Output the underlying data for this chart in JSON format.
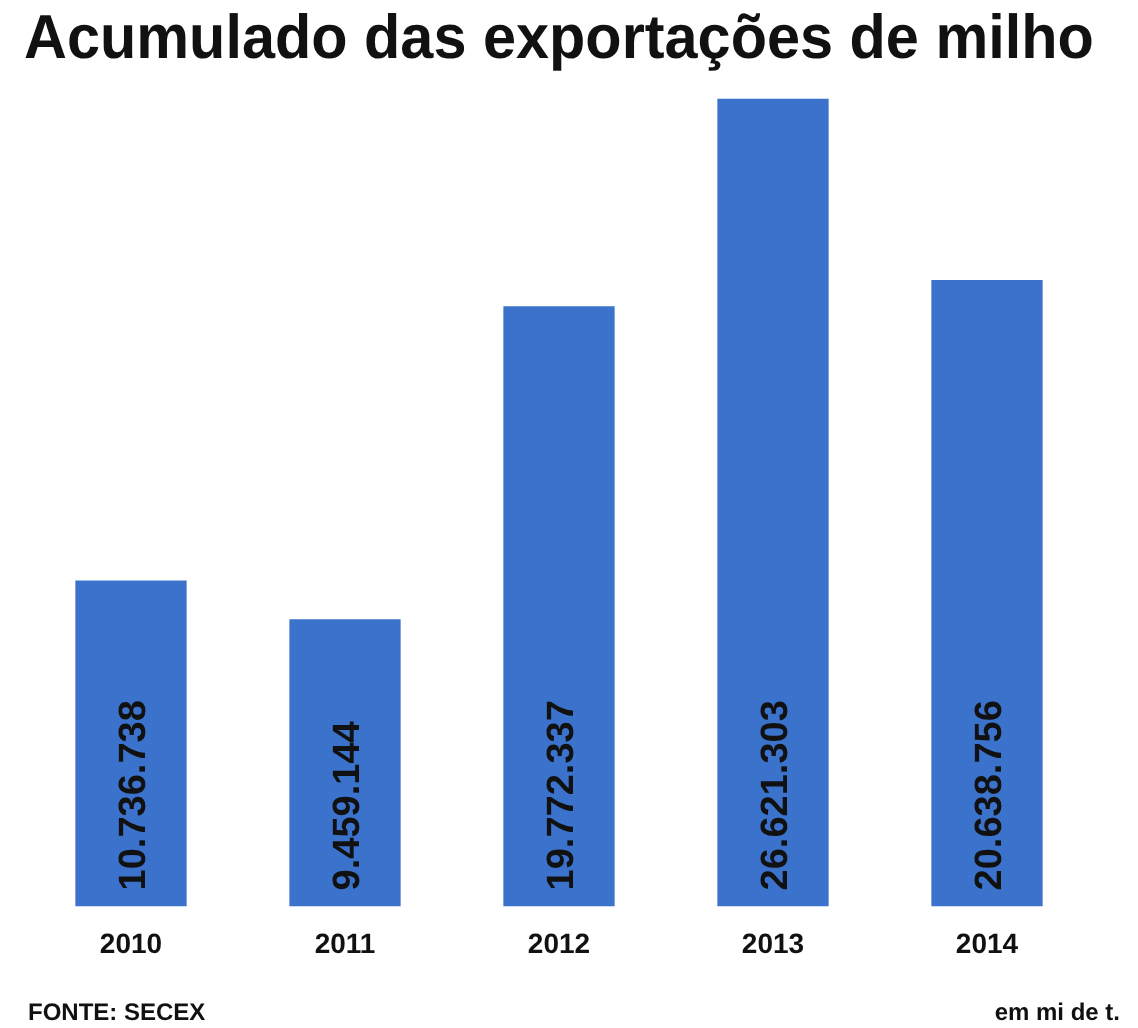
{
  "chart_data": {
    "type": "bar",
    "title": "Acumulado das exportações de milho",
    "categories": [
      "2010",
      "2011",
      "2012",
      "2013",
      "2014"
    ],
    "values": [
      10736738,
      9459144,
      19772337,
      26621303,
      20638756
    ],
    "value_labels": [
      "10.736.738",
      "9.459.144",
      "19.772.337",
      "26.621.303",
      "20.638.756"
    ],
    "color": "#3b72cc",
    "annotations": [
      "FONTE: SECEX",
      "em mi de t."
    ],
    "grid": false,
    "legend": false
  }
}
